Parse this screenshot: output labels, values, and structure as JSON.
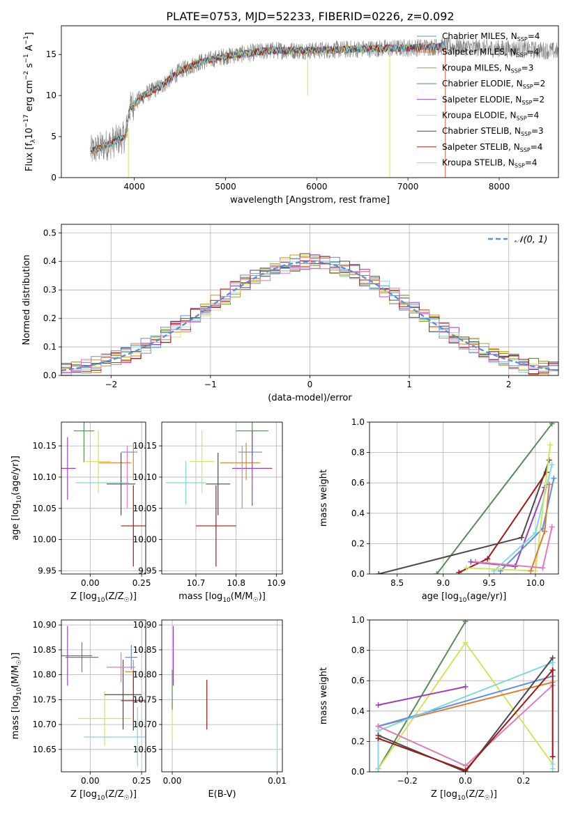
{
  "figure": {
    "title": "PLATE=0753, MJD=52233, FIBERID=0226, z=0.092"
  },
  "colors": {
    "Chabrier MILES": "#5b8def",
    "Salpeter MILES": "#e07a2e",
    "Kroupa MILES": "#c8961e",
    "Chabrier ELODIE": "#5a8a5a",
    "Salpeter ELODIE": "#9a3fb8",
    "Kroupa ELODIE": "#d5e35a",
    "Chabrier STELIB": "#4a4a4a",
    "Salpeter STELIB": "#a01818",
    "Kroupa STELIB": "#7fd8e0",
    "observed": "#808080",
    "extra_pink": "#e07ab8",
    "normal": "#5b8fd6",
    "grid": "#b0b0b0"
  },
  "chart_data": [
    {
      "id": "spectrum",
      "type": "line",
      "xlabel": "wavelength [Angstrom, rest frame]",
      "ylabel": "Flux [f_λ10^-17 erg cm^-2 s^-1 A^-1]",
      "xlim": [
        3200,
        8650
      ],
      "ylim": [
        0,
        18.5
      ],
      "xticks": [
        4000,
        5000,
        6000,
        7000,
        8000
      ],
      "yticks": [
        0,
        5,
        10,
        15
      ],
      "grid": false,
      "legend_position": "top-right",
      "legend": [
        {
          "label": "Chabrier MILES",
          "nssp": "4",
          "color_key": "Chabrier MILES"
        },
        {
          "label": "Salpeter MILES",
          "nssp": "4",
          "color_key": "Salpeter MILES"
        },
        {
          "label": "Kroupa MILES",
          "nssp": "3",
          "color_key": "Kroupa MILES"
        },
        {
          "label": "Chabrier ELODIE",
          "nssp": "2",
          "color_key": "Chabrier ELODIE"
        },
        {
          "label": "Salpeter ELODIE",
          "nssp": "2",
          "color_key": "Salpeter ELODIE"
        },
        {
          "label": "Kroupa ELODIE",
          "nssp": "4",
          "color_key": "Kroupa ELODIE"
        },
        {
          "label": "Chabrier STELIB",
          "nssp": "3",
          "color_key": "Chabrier STELIB"
        },
        {
          "label": "Salpeter STELIB",
          "nssp": "4",
          "color_key": "Salpeter STELIB"
        },
        {
          "label": "Kroupa STELIB",
          "nssp": "4",
          "color_key": "Kroupa STELIB"
        }
      ],
      "observed_trend": [
        [
          3520,
          3.2
        ],
        [
          3700,
          4.0
        ],
        [
          3900,
          5.0
        ],
        [
          3950,
          8.5
        ],
        [
          4100,
          10.0
        ],
        [
          4300,
          11.2
        ],
        [
          4500,
          13.0
        ],
        [
          4700,
          14.0
        ],
        [
          5000,
          14.8
        ],
        [
          5500,
          15.5
        ],
        [
          6000,
          15.5
        ],
        [
          6500,
          15.7
        ],
        [
          7000,
          15.8
        ],
        [
          7400,
          16.0
        ],
        [
          7800,
          15.8
        ],
        [
          8300,
          15.6
        ],
        [
          8650,
          15.4
        ]
      ],
      "models_end": 7410
    },
    {
      "id": "residuals",
      "type": "line",
      "xlabel": "(data-model)/error",
      "ylabel": "Normed distribution",
      "xlim": [
        -2.5,
        2.5
      ],
      "ylim": [
        0,
        0.53
      ],
      "xticks": [
        -2,
        -1,
        0,
        1,
        2
      ],
      "yticks": [
        0.0,
        0.1,
        0.2,
        0.3,
        0.4,
        0.5
      ],
      "grid": true,
      "legend_position": "top-right",
      "legend": [
        {
          "label": "𝒩(0, 1)",
          "style": "dashed"
        }
      ],
      "bin_width": 0.1
    },
    {
      "id": "age_vs_Z",
      "type": "scatter",
      "xlabel": "Z [log10(Z/Z☉)]",
      "ylabel": "age  [log10(age/yr)]",
      "xlim": [
        -0.14,
        0.27
      ],
      "ylim": [
        9.945,
        10.188
      ],
      "xticks": [
        0.0,
        0.25
      ],
      "yticks": [
        9.95,
        10.0,
        10.05,
        10.1,
        10.15
      ],
      "grid": true,
      "points": [
        {
          "c": "Chabrier MILES",
          "x": 0.19,
          "xerr": 0.04,
          "y": 10.14,
          "yerr": 0.0
        },
        {
          "c": "Salpeter MILES",
          "x": 0.12,
          "xerr": 0.08,
          "y": 10.123,
          "yerr": 0.0
        },
        {
          "c": "Kroupa MILES",
          "x": 0.21,
          "xerr": 0.0,
          "y": 10.125,
          "yerr": 0.03
        },
        {
          "c": "Chabrier ELODIE",
          "x": -0.03,
          "xerr": 0.05,
          "y": 10.174,
          "yerr": 0.05
        },
        {
          "c": "Salpeter ELODIE",
          "x": -0.11,
          "xerr": 0.04,
          "y": 10.114,
          "yerr": 0.05
        },
        {
          "c": "Kroupa ELODIE",
          "x": 0.04,
          "xerr": 0.06,
          "y": 10.125,
          "yerr": 0.05
        },
        {
          "c": "Chabrier STELIB",
          "x": 0.15,
          "xerr": 0.07,
          "y": 10.089,
          "yerr": 0.05
        },
        {
          "c": "Salpeter STELIB",
          "x": 0.21,
          "xerr": 0.06,
          "y": 10.022,
          "yerr": 0.065
        },
        {
          "c": "Kroupa STELIB",
          "x": 0.06,
          "xerr": 0.13,
          "y": 10.091,
          "yerr": 0.0
        },
        {
          "c": "extra_pink",
          "x": 0.18,
          "xerr": 0.0,
          "y": 10.1,
          "yerr": 0.05
        }
      ]
    },
    {
      "id": "age_vs_mass",
      "type": "scatter",
      "xlabel": "mass [log10(M/M☉)]",
      "ylabel": "",
      "xlim": [
        10.615,
        10.915
      ],
      "ylim": [
        9.945,
        10.188
      ],
      "xticks": [
        10.7,
        10.8,
        10.9
      ],
      "yticks": [
        9.95,
        10.0,
        10.05,
        10.1,
        10.15
      ],
      "grid": true,
      "points": [
        {
          "c": "Chabrier MILES",
          "x": 10.835,
          "xerr": 0.03,
          "y": 10.14,
          "yerr": 0.0
        },
        {
          "c": "Salpeter MILES",
          "x": 10.81,
          "xerr": 0.05,
          "y": 10.123,
          "yerr": 0.0
        },
        {
          "c": "Kroupa MILES",
          "x": 10.825,
          "xerr": 0.0,
          "y": 10.125,
          "yerr": 0.03
        },
        {
          "c": "Chabrier ELODIE",
          "x": 10.84,
          "xerr": 0.04,
          "y": 10.174,
          "yerr": 0.04
        },
        {
          "c": "Salpeter ELODIE",
          "x": 10.84,
          "xerr": 0.05,
          "y": 10.114,
          "yerr": 0.06
        },
        {
          "c": "Kroupa ELODIE",
          "x": 10.715,
          "xerr": 0.03,
          "y": 10.125,
          "yerr": 0.05
        },
        {
          "c": "Chabrier STELIB",
          "x": 10.755,
          "xerr": 0.03,
          "y": 10.089,
          "yerr": 0.05
        },
        {
          "c": "Salpeter STELIB",
          "x": 10.75,
          "xerr": 0.05,
          "y": 10.022,
          "yerr": 0.065
        },
        {
          "c": "Kroupa STELIB",
          "x": 10.675,
          "xerr": 0.05,
          "y": 10.091,
          "yerr": 0.035
        },
        {
          "c": "extra_pink",
          "x": 10.815,
          "xerr": 0.0,
          "y": 10.1,
          "yerr": 0.05
        }
      ]
    },
    {
      "id": "weight_vs_age",
      "type": "line",
      "xlabel": "age  [log10(age/yr)]",
      "ylabel": "mass weight",
      "xlim": [
        8.2,
        10.25
      ],
      "ylim": [
        0,
        1.0
      ],
      "xticks": [
        8.5,
        9.0,
        9.5,
        10.0
      ],
      "yticks": [
        0.0,
        0.2,
        0.4,
        0.6,
        0.8,
        1.0
      ],
      "grid": true,
      "series": [
        {
          "c": "Chabrier ELODIE",
          "x": [
            8.93,
            10.18
          ],
          "y": [
            0.0,
            0.99
          ]
        },
        {
          "c": "Chabrier STELIB",
          "x": [
            8.3,
            9.85,
            10.15
          ],
          "y": [
            0.0,
            0.24,
            0.75
          ]
        },
        {
          "c": "Salpeter STELIB",
          "x": [
            9.17,
            9.48,
            10.12
          ],
          "y": [
            0.01,
            0.1,
            0.67
          ]
        },
        {
          "c": "Salpeter ELODIE",
          "x": [
            9.3,
            9.78,
            10.1
          ],
          "y": [
            0.08,
            0.05,
            0.57
          ]
        },
        {
          "c": "Kroupa STELIB",
          "x": [
            9.55,
            10.0,
            10.18
          ],
          "y": [
            0.02,
            0.27,
            0.72
          ]
        },
        {
          "c": "Chabrier MILES",
          "x": [
            9.62,
            10.08,
            10.2
          ],
          "y": [
            0.02,
            0.3,
            0.63
          ]
        },
        {
          "c": "Kroupa ELODIE",
          "x": [
            9.25,
            10.0,
            10.16
          ],
          "y": [
            0.04,
            0.02,
            0.85
          ]
        },
        {
          "c": "Salpeter MILES",
          "x": [
            9.95,
            10.1,
            10.15
          ],
          "y": [
            0.02,
            0.28,
            0.59
          ]
        },
        {
          "c": "extra_pink",
          "x": [
            9.35,
            10.08,
            10.18
          ],
          "y": [
            0.08,
            0.04,
            0.31
          ]
        }
      ]
    },
    {
      "id": "mass_vs_Z",
      "type": "scatter",
      "xlabel": "Z [log10(Z/Z☉)]",
      "ylabel": "mass [log10(M/M☉)]",
      "xlim": [
        -0.14,
        0.27
      ],
      "ylim": [
        10.605,
        10.91
      ],
      "xticks": [
        0.0,
        0.25
      ],
      "yticks": [
        10.65,
        10.7,
        10.75,
        10.8,
        10.85,
        10.9
      ],
      "grid": true,
      "points": [
        {
          "c": "Chabrier MILES",
          "x": 0.2,
          "xerr": 0.03,
          "y": 10.835,
          "yerr": 0.025
        },
        {
          "c": "Salpeter MILES",
          "x": 0.2,
          "xerr": 0.03,
          "y": 10.806,
          "yerr": 0.0
        },
        {
          "c": "Kroupa MILES",
          "x": 0.21,
          "xerr": 0.0,
          "y": 10.8,
          "yerr": 0.03
        },
        {
          "c": "Chabrier ELODIE",
          "x": -0.04,
          "xerr": 0.08,
          "y": 10.835,
          "yerr": 0.03
        },
        {
          "c": "Salpeter ELODIE",
          "x": -0.11,
          "xerr": 0.12,
          "y": 10.838,
          "yerr": 0.06
        },
        {
          "c": "Kroupa ELODIE",
          "x": 0.07,
          "xerr": 0.13,
          "y": 10.712,
          "yerr": 0.055
        },
        {
          "c": "Chabrier STELIB",
          "x": 0.16,
          "xerr": 0.09,
          "y": 10.76,
          "yerr": 0.07
        },
        {
          "c": "Salpeter STELIB",
          "x": 0.21,
          "xerr": 0.06,
          "y": 10.748,
          "yerr": 0.06
        },
        {
          "c": "Kroupa STELIB",
          "x": 0.12,
          "xerr": 0.15,
          "y": 10.675,
          "yerr": 0.0
        },
        {
          "c": "extra_pink",
          "x": 0.15,
          "xerr": 0.07,
          "y": 10.815,
          "yerr": 0.03
        },
        {
          "c": "Kroupa STELIB",
          "x": 0.23,
          "xerr": 0.0,
          "y": 10.675,
          "yerr": 0.06
        }
      ]
    },
    {
      "id": "mass_vs_EBV",
      "type": "scatter",
      "xlabel": "E(B-V)",
      "ylabel": "",
      "xlim": [
        -0.001,
        0.0105
      ],
      "ylim": [
        10.605,
        10.91
      ],
      "xticks": [
        0.0,
        0.01
      ],
      "yticks": [
        10.65,
        10.7,
        10.75,
        10.8,
        10.85,
        10.9
      ],
      "grid": true,
      "points": [
        {
          "c": "Salpeter ELODIE",
          "x": 0.0001,
          "xerr": 0.0,
          "y": 10.838,
          "yerr": 0.06
        },
        {
          "c": "Kroupa ELODIE",
          "x": 0.0,
          "xerr": 0.0,
          "y": 10.712,
          "yerr": 0.04
        },
        {
          "c": "Chabrier ELODIE",
          "x": 0.0,
          "xerr": 0.0,
          "y": 10.77,
          "yerr": 0.04
        },
        {
          "c": "Salpeter STELIB",
          "x": 0.0033,
          "xerr": 0.0,
          "y": 10.74,
          "yerr": 0.05
        },
        {
          "c": "Kroupa STELIB",
          "x": 0.01,
          "xerr": 0.0,
          "y": 10.655,
          "yerr": 0.05
        }
      ]
    },
    {
      "id": "weight_vs_Z",
      "type": "line",
      "xlabel": "Z [log10(Z/Z☉)]",
      "ylabel": "mass weight",
      "xlim": [
        -0.33,
        0.32
      ],
      "ylim": [
        0,
        1.0
      ],
      "xticks": [
        -0.2,
        0.0,
        0.2
      ],
      "yticks": [
        0.0,
        0.2,
        0.4,
        0.6,
        0.8,
        1.0
      ],
      "grid": true,
      "series": [
        {
          "c": "Chabrier ELODIE",
          "x": [
            -0.3,
            0.0
          ],
          "y": [
            0.02,
            0.99
          ]
        },
        {
          "c": "Kroupa ELODIE",
          "x": [
            -0.3,
            0.0,
            0.3
          ],
          "y": [
            0.02,
            0.85,
            0.05
          ]
        },
        {
          "c": "Salpeter ELODIE",
          "x": [
            -0.3,
            0.0
          ],
          "y": [
            0.44,
            0.56
          ]
        },
        {
          "c": "Salpeter MILES",
          "x": [
            -0.3,
            0.3
          ],
          "y": [
            0.3,
            0.59
          ]
        },
        {
          "c": "Chabrier MILES",
          "x": [
            -0.3,
            0.3
          ],
          "y": [
            0.3,
            0.63
          ]
        },
        {
          "c": "Kroupa STELIB",
          "x": [
            -0.3,
            -0.3,
            0.3,
            0.3
          ],
          "y": [
            0.02,
            0.27,
            0.72,
            0.02
          ]
        },
        {
          "c": "extra_pink",
          "x": [
            -0.3,
            0.0,
            0.3
          ],
          "y": [
            0.3,
            0.04,
            0.57
          ]
        },
        {
          "c": "Chabrier STELIB",
          "x": [
            -0.3,
            0.0,
            0.3
          ],
          "y": [
            0.24,
            0.0,
            0.75
          ]
        },
        {
          "c": "Salpeter STELIB",
          "x": [
            -0.3,
            0.0,
            0.3,
            0.3
          ],
          "y": [
            0.22,
            0.01,
            0.67,
            0.1
          ]
        }
      ]
    }
  ]
}
